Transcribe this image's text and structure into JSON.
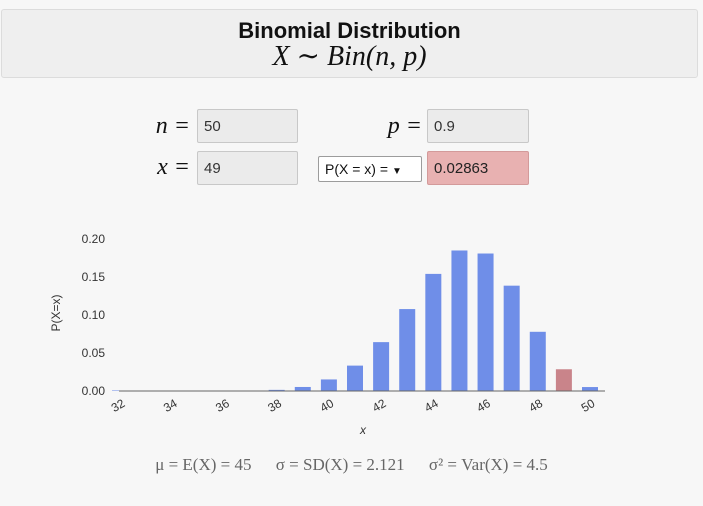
{
  "header": {
    "title": "Binomial Distribution",
    "subtitle": "X ∼ Bin(n, p)"
  },
  "inputs": {
    "n_label": "n =",
    "n_value": "50",
    "p_label": "p =",
    "p_value": "0.9",
    "x_label": "x =",
    "x_value": "49",
    "prob_type": "P(X = x) =",
    "result": "0.02863"
  },
  "colors": {
    "bar": "#6f8ee8",
    "highlight": "#c9848a",
    "result_bg": "#e8b1b1"
  },
  "chart_data": {
    "type": "bar",
    "xlabel": "x",
    "ylabel": "P(X=x)",
    "xlim": [
      32,
      50
    ],
    "ylim": [
      0,
      0.2
    ],
    "x_ticks": [
      "32",
      "34",
      "36",
      "38",
      "40",
      "42",
      "44",
      "46",
      "48",
      "50"
    ],
    "y_ticks": [
      "0.00",
      "0.05",
      "0.10",
      "0.15",
      "0.20"
    ],
    "x": [
      32,
      33,
      34,
      35,
      36,
      37,
      38,
      39,
      40,
      41,
      42,
      43,
      44,
      45,
      46,
      47,
      48,
      49,
      50
    ],
    "values": [
      0.0,
      0.0,
      0.0,
      0.0001,
      0.0002,
      0.0006,
      0.0015,
      0.0053,
      0.0152,
      0.0334,
      0.0643,
      0.1078,
      0.1541,
      0.1849,
      0.1809,
      0.1386,
      0.0779,
      0.0286,
      0.0052
    ],
    "highlight_x": 49
  },
  "stats": {
    "mean": "μ = E(X) = 45",
    "sd": "σ = SD(X) = 2.121",
    "var": "σ² = Var(X) = 4.5"
  }
}
